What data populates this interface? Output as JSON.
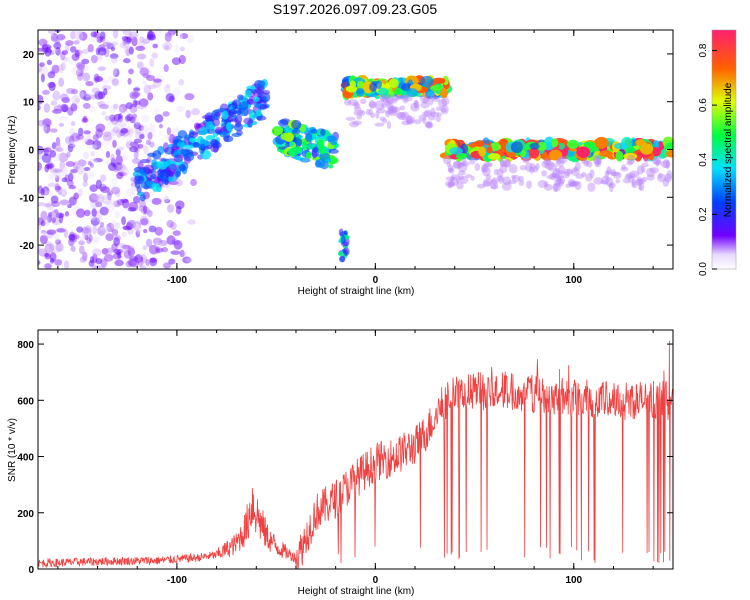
{
  "colors": {
    "snr_line": "#f04040",
    "axis": "#000000",
    "background": "#ffffff"
  },
  "chart_data": [
    {
      "type": "heatmap",
      "title": "S197.2026.097.09.23.G05",
      "xlabel": "Height of straight line (km)",
      "ylabel": "Frequency (Hz)",
      "xlim": [
        -170,
        150
      ],
      "ylim": [
        -25,
        25
      ],
      "xticks": [
        "-100",
        "0",
        "100"
      ],
      "yticks": [
        "-20",
        "-10",
        "0",
        "10",
        "20"
      ],
      "colorbar": {
        "label": "Normalized spectral amplitude",
        "range": [
          0,
          0.875
        ],
        "ticks": [
          "0.0",
          "0.2",
          "0.4",
          "0.6",
          "0.8"
        ],
        "colormap": "rainbow"
      },
      "features": [
        {
          "name": "noise",
          "x_range": [
            -170,
            -85
          ],
          "y_range": [
            -25,
            25
          ],
          "amplitude": 0.1
        },
        {
          "name": "rising-track",
          "x_range": [
            -120,
            -55
          ],
          "y_start": -7,
          "y_end": 11,
          "amplitude": 0.3
        },
        {
          "name": "mid-cluster",
          "x_range": [
            -50,
            -20
          ],
          "y_center": 3,
          "amplitude": 0.45
        },
        {
          "name": "low-blob",
          "x": -16,
          "y": -20,
          "amplitude": 0.35
        },
        {
          "name": "upper-band",
          "x_range": [
            -15,
            36
          ],
          "y_center": 13,
          "amplitude": 0.65
        },
        {
          "name": "zero-band",
          "x_range": [
            36,
            150
          ],
          "y_center": 0,
          "amplitude": 0.75
        }
      ]
    },
    {
      "type": "line",
      "xlabel": "Height of straight line (km)",
      "ylabel": "SNR (10 * v/v)",
      "xlim": [
        -170,
        150
      ],
      "ylim": [
        0,
        850
      ],
      "xticks": [
        "-100",
        "0",
        "100"
      ],
      "yticks": [
        "0",
        "200",
        "400",
        "600",
        "800"
      ],
      "series": [
        {
          "name": "SNR",
          "x": [
            -170,
            -150,
            -130,
            -110,
            -90,
            -80,
            -70,
            -65,
            -62,
            -60,
            -55,
            -50,
            -45,
            -40,
            -38,
            -30,
            -20,
            -10,
            0,
            10,
            20,
            25,
            30,
            35,
            40,
            60,
            80,
            100,
            120,
            140,
            150
          ],
          "y": [
            20,
            25,
            28,
            30,
            40,
            50,
            90,
            150,
            240,
            200,
            120,
            80,
            60,
            40,
            60,
            200,
            250,
            320,
            380,
            400,
            440,
            480,
            540,
            600,
            620,
            640,
            625,
            610,
            600,
            600,
            600
          ]
        }
      ]
    }
  ]
}
